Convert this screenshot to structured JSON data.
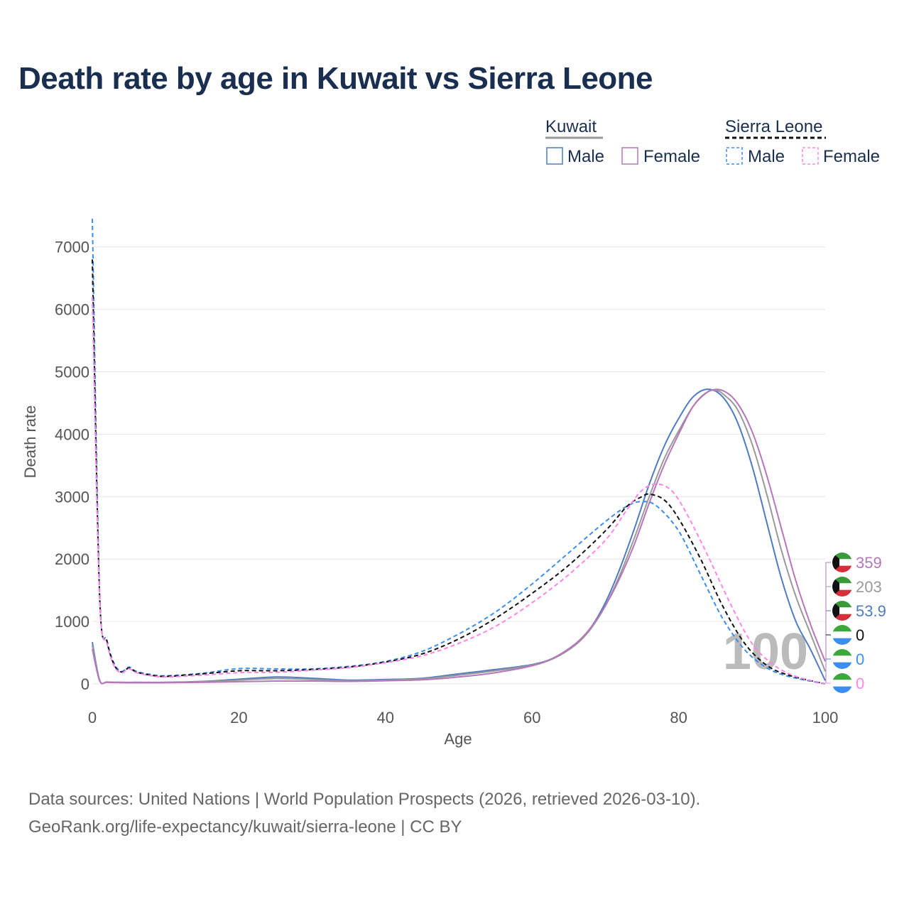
{
  "title": "Death rate by age in Kuwait vs Sierra Leone",
  "legend": {
    "groups": [
      {
        "name": "Kuwait",
        "line_color": "#999999",
        "line_style": "solid",
        "items": [
          {
            "label": "Male",
            "color": "#4f7cc1",
            "dashed": false
          },
          {
            "label": "Female",
            "color": "#b577b9",
            "dashed": false
          }
        ]
      },
      {
        "name": "Sierra Leone",
        "line_color": "#111111",
        "line_style": "dashed",
        "items": [
          {
            "label": "Male",
            "color": "#3b8df0",
            "dashed": true
          },
          {
            "label": "Female",
            "color": "#ff86e6",
            "dashed": true
          }
        ]
      }
    ]
  },
  "chart_data": {
    "type": "line",
    "xlabel": "Age",
    "ylabel": "Death rate",
    "xlim": [
      0,
      100
    ],
    "ylim": [
      0,
      7400
    ],
    "xticks": [
      0,
      20,
      40,
      60,
      80,
      100
    ],
    "yticks": [
      0,
      1000,
      2000,
      3000,
      4000,
      5000,
      6000,
      7000
    ],
    "grid": true,
    "frame_label": "100",
    "series": [
      {
        "name": "Kuwait Male",
        "country": "Kuwait",
        "color": "#4f7cc1",
        "dashed": false,
        "points": [
          [
            0,
            670
          ],
          [
            1,
            60
          ],
          [
            2,
            30
          ],
          [
            4,
            25
          ],
          [
            6,
            25
          ],
          [
            10,
            25
          ],
          [
            15,
            40
          ],
          [
            20,
            75
          ],
          [
            25,
            110
          ],
          [
            30,
            90
          ],
          [
            35,
            60
          ],
          [
            40,
            70
          ],
          [
            45,
            90
          ],
          [
            50,
            160
          ],
          [
            55,
            230
          ],
          [
            60,
            310
          ],
          [
            63,
            420
          ],
          [
            66,
            650
          ],
          [
            68,
            900
          ],
          [
            70,
            1300
          ],
          [
            72,
            1850
          ],
          [
            74,
            2500
          ],
          [
            76,
            3200
          ],
          [
            78,
            3800
          ],
          [
            80,
            4250
          ],
          [
            82,
            4600
          ],
          [
            84,
            4720
          ],
          [
            86,
            4600
          ],
          [
            88,
            4200
          ],
          [
            90,
            3500
          ],
          [
            92,
            2600
          ],
          [
            94,
            1700
          ],
          [
            96,
            1000
          ],
          [
            98,
            550
          ],
          [
            100,
            54
          ]
        ]
      },
      {
        "name": "Kuwait Total",
        "country": "Kuwait",
        "color": "#999999",
        "dashed": false,
        "points": [
          [
            0,
            620
          ],
          [
            1,
            55
          ],
          [
            2,
            28
          ],
          [
            4,
            22
          ],
          [
            6,
            22
          ],
          [
            10,
            22
          ],
          [
            15,
            35
          ],
          [
            20,
            60
          ],
          [
            25,
            85
          ],
          [
            30,
            70
          ],
          [
            35,
            50
          ],
          [
            40,
            60
          ],
          [
            45,
            80
          ],
          [
            50,
            140
          ],
          [
            55,
            210
          ],
          [
            60,
            300
          ],
          [
            63,
            410
          ],
          [
            66,
            630
          ],
          [
            68,
            880
          ],
          [
            70,
            1250
          ],
          [
            72,
            1750
          ],
          [
            74,
            2350
          ],
          [
            76,
            3000
          ],
          [
            78,
            3600
          ],
          [
            80,
            4050
          ],
          [
            82,
            4450
          ],
          [
            84,
            4680
          ],
          [
            85,
            4700
          ],
          [
            86,
            4650
          ],
          [
            88,
            4400
          ],
          [
            90,
            3850
          ],
          [
            92,
            3050
          ],
          [
            94,
            2150
          ],
          [
            96,
            1400
          ],
          [
            98,
            800
          ],
          [
            100,
            203
          ]
        ]
      },
      {
        "name": "Kuwait Female",
        "country": "Kuwait",
        "color": "#b577b9",
        "dashed": false,
        "points": [
          [
            0,
            560
          ],
          [
            1,
            50
          ],
          [
            2,
            25
          ],
          [
            4,
            20
          ],
          [
            6,
            20
          ],
          [
            10,
            20
          ],
          [
            15,
            25
          ],
          [
            20,
            35
          ],
          [
            25,
            45
          ],
          [
            30,
            45
          ],
          [
            35,
            40
          ],
          [
            40,
            50
          ],
          [
            45,
            65
          ],
          [
            50,
            110
          ],
          [
            55,
            180
          ],
          [
            60,
            290
          ],
          [
            63,
            420
          ],
          [
            66,
            650
          ],
          [
            68,
            900
          ],
          [
            70,
            1250
          ],
          [
            72,
            1700
          ],
          [
            74,
            2250
          ],
          [
            76,
            2900
          ],
          [
            78,
            3500
          ],
          [
            80,
            4000
          ],
          [
            82,
            4450
          ],
          [
            84,
            4680
          ],
          [
            86,
            4700
          ],
          [
            88,
            4500
          ],
          [
            90,
            4050
          ],
          [
            92,
            3350
          ],
          [
            94,
            2500
          ],
          [
            96,
            1650
          ],
          [
            98,
            950
          ],
          [
            100,
            359
          ]
        ]
      },
      {
        "name": "Sierra Leone Male",
        "country": "Sierra Leone",
        "color": "#3b8df0",
        "dashed": true,
        "points": [
          [
            0,
            7450
          ],
          [
            1,
            1450
          ],
          [
            2,
            700
          ],
          [
            3,
            320
          ],
          [
            4,
            200
          ],
          [
            5,
            270
          ],
          [
            6,
            200
          ],
          [
            8,
            150
          ],
          [
            10,
            130
          ],
          [
            15,
            170
          ],
          [
            20,
            245
          ],
          [
            25,
            240
          ],
          [
            30,
            240
          ],
          [
            35,
            280
          ],
          [
            40,
            360
          ],
          [
            45,
            520
          ],
          [
            50,
            800
          ],
          [
            55,
            1150
          ],
          [
            60,
            1600
          ],
          [
            65,
            2100
          ],
          [
            70,
            2600
          ],
          [
            73,
            2850
          ],
          [
            75,
            2920
          ],
          [
            77,
            2850
          ],
          [
            80,
            2450
          ],
          [
            83,
            1750
          ],
          [
            86,
            1050
          ],
          [
            89,
            550
          ],
          [
            92,
            260
          ],
          [
            95,
            120
          ],
          [
            100,
            0
          ]
        ]
      },
      {
        "name": "Sierra Leone Total",
        "country": "Sierra Leone",
        "color": "#111111",
        "dashed": true,
        "points": [
          [
            0,
            6800
          ],
          [
            1,
            1400
          ],
          [
            2,
            680
          ],
          [
            3,
            300
          ],
          [
            4,
            190
          ],
          [
            5,
            255
          ],
          [
            6,
            190
          ],
          [
            8,
            140
          ],
          [
            10,
            120
          ],
          [
            15,
            160
          ],
          [
            20,
            210
          ],
          [
            25,
            210
          ],
          [
            30,
            230
          ],
          [
            35,
            270
          ],
          [
            40,
            350
          ],
          [
            45,
            480
          ],
          [
            50,
            720
          ],
          [
            55,
            1050
          ],
          [
            60,
            1450
          ],
          [
            65,
            1900
          ],
          [
            70,
            2450
          ],
          [
            73,
            2850
          ],
          [
            75,
            3000
          ],
          [
            76,
            3040
          ],
          [
            78,
            2950
          ],
          [
            80,
            2650
          ],
          [
            83,
            2000
          ],
          [
            86,
            1250
          ],
          [
            89,
            650
          ],
          [
            92,
            300
          ],
          [
            95,
            140
          ],
          [
            100,
            0
          ]
        ]
      },
      {
        "name": "Sierra Leone Female",
        "country": "Sierra Leone",
        "color": "#ff86e6",
        "dashed": true,
        "points": [
          [
            0,
            6200
          ],
          [
            1,
            1350
          ],
          [
            2,
            650
          ],
          [
            3,
            280
          ],
          [
            4,
            180
          ],
          [
            5,
            240
          ],
          [
            6,
            180
          ],
          [
            8,
            130
          ],
          [
            10,
            110
          ],
          [
            15,
            140
          ],
          [
            20,
            180
          ],
          [
            25,
            185
          ],
          [
            30,
            220
          ],
          [
            35,
            260
          ],
          [
            40,
            340
          ],
          [
            45,
            450
          ],
          [
            50,
            650
          ],
          [
            55,
            920
          ],
          [
            60,
            1300
          ],
          [
            65,
            1750
          ],
          [
            70,
            2300
          ],
          [
            73,
            2800
          ],
          [
            75,
            3100
          ],
          [
            77,
            3200
          ],
          [
            79,
            3100
          ],
          [
            81,
            2750
          ],
          [
            84,
            2050
          ],
          [
            87,
            1300
          ],
          [
            90,
            650
          ],
          [
            93,
            300
          ],
          [
            96,
            120
          ],
          [
            100,
            0
          ]
        ]
      }
    ],
    "end_labels": [
      {
        "country": "Kuwait",
        "value": "359",
        "color": "#b577b9"
      },
      {
        "country": "Kuwait",
        "value": "203",
        "color": "#999999"
      },
      {
        "country": "Kuwait",
        "value": "53.9",
        "color": "#4f7cc1"
      },
      {
        "country": "Sierra Leone",
        "value": "0",
        "color": "#111111"
      },
      {
        "country": "Sierra Leone",
        "value": "0",
        "color": "#3b8df0"
      },
      {
        "country": "Sierra Leone",
        "value": "0",
        "color": "#ff86e6"
      }
    ]
  },
  "source_line1": "Data sources: United Nations | World Population Prospects (2026, retrieved 2026-03-10).",
  "source_line2": "GeoRank.org/life-expectancy/kuwait/sierra-leone | CC BY"
}
